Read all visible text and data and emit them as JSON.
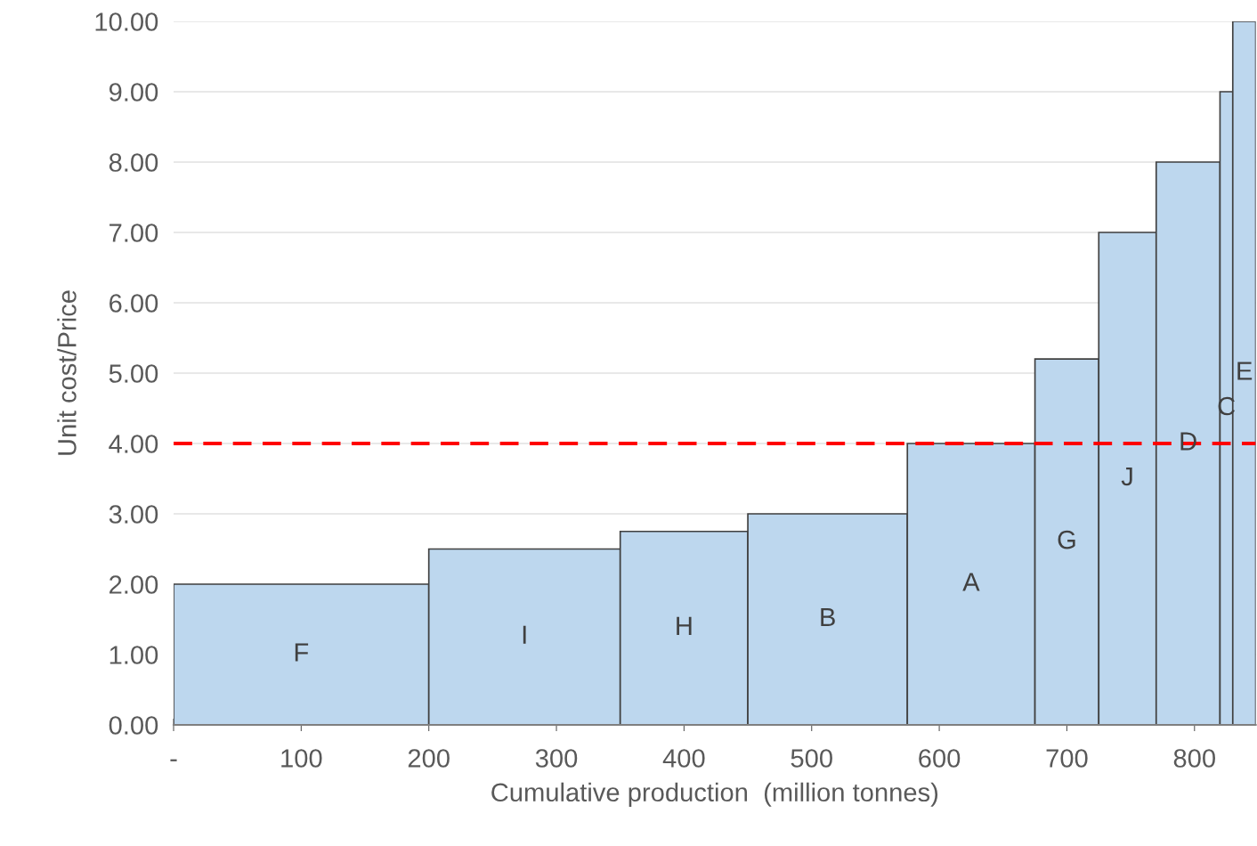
{
  "chart_data": {
    "type": "histogram",
    "xlabel": "Cumulative production  (million tonnes)",
    "ylabel": "Unit cost/Price",
    "bins": [
      0,
      200,
      350,
      450,
      575,
      675,
      725,
      770,
      820,
      830,
      848
    ],
    "values": [
      2,
      2.5,
      2.75,
      3,
      4,
      5.2,
      7,
      8,
      9,
      10
    ],
    "color": "#bdd7ee",
    "xlim": [
      0,
      848
    ],
    "ylim": [
      0,
      10
    ],
    "xticks": [
      {
        "value": 0,
        "label": "-"
      },
      100,
      200,
      300,
      400,
      500,
      600,
      700,
      800
    ],
    "yticks": [
      {
        "value": 0,
        "label": "0.00"
      },
      {
        "value": 1,
        "label": "1.00"
      },
      {
        "value": 2,
        "label": "2.00"
      },
      {
        "value": 3,
        "label": "3.00"
      },
      {
        "value": 4,
        "label": "4.00"
      },
      {
        "value": 5,
        "label": "5.00"
      },
      {
        "value": 6,
        "label": "6.00"
      },
      {
        "value": 7,
        "label": "7.00"
      },
      {
        "value": 8,
        "label": "8.00"
      },
      {
        "value": 9,
        "label": "9.00"
      },
      {
        "value": 10,
        "label": "10.00"
      }
    ],
    "grid": "y",
    "ref_lines": [
      {
        "axis": "y",
        "value": 4,
        "color": "#ff0000",
        "line_style": "dashed"
      }
    ],
    "annotations": [
      "F",
      "I",
      "H",
      "B",
      "A",
      "G",
      "J",
      "D",
      "C",
      "E"
    ]
  }
}
